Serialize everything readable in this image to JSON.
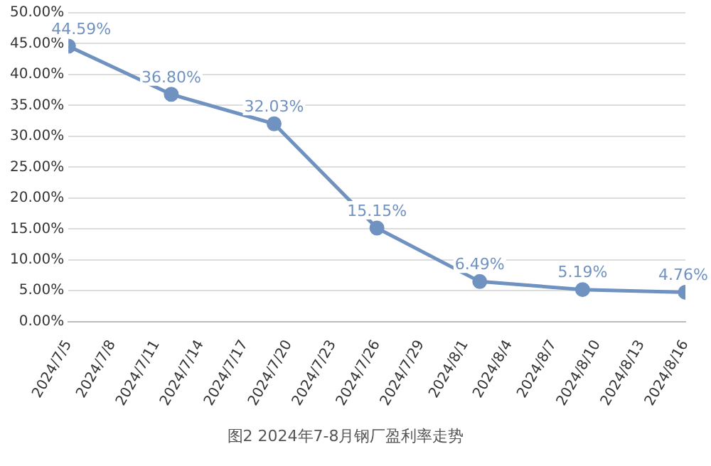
{
  "chart_data": {
    "type": "line",
    "title": "图2 2024年7-8月钢厂盈利率走势",
    "x": [
      "2024-07-05",
      "2024-07-12",
      "2024-07-19",
      "2024-07-26",
      "2024-08-02",
      "2024-08-09",
      "2024-08-16"
    ],
    "series": [
      {
        "color": "#7092c0",
        "values": [
          44.59,
          36.8,
          32.03,
          15.15,
          6.49,
          5.19,
          4.76
        ],
        "value_labels": [
          "44.59%",
          "36.80%",
          "32.03%",
          "15.15%",
          "6.49%",
          "5.19%",
          "4.76%"
        ]
      }
    ],
    "xlim": [
      "2024-07-05",
      "2024-08-16"
    ],
    "xticks": [
      {
        "value": "2024-07-05",
        "label": "2024/7/5"
      },
      {
        "value": "2024-07-08",
        "label": "2024/7/8"
      },
      {
        "value": "2024-07-11",
        "label": "2024/7/11"
      },
      {
        "value": "2024-07-14",
        "label": "2024/7/14"
      },
      {
        "value": "2024-07-17",
        "label": "2024/7/17"
      },
      {
        "value": "2024-07-20",
        "label": "2024/7/20"
      },
      {
        "value": "2024-07-23",
        "label": "2024/7/23"
      },
      {
        "value": "2024-07-26",
        "label": "2024/7/26"
      },
      {
        "value": "2024-07-29",
        "label": "2024/7/29"
      },
      {
        "value": "2024-08-01",
        "label": "2024/8/1"
      },
      {
        "value": "2024-08-04",
        "label": "2024/8/4"
      },
      {
        "value": "2024-08-07",
        "label": "2024/8/7"
      },
      {
        "value": "2024-08-10",
        "label": "2024/8/10"
      },
      {
        "value": "2024-08-13",
        "label": "2024/8/13"
      },
      {
        "value": "2024-08-16",
        "label": "2024/8/16"
      }
    ],
    "ylim": [
      0,
      50
    ],
    "yticks": [
      {
        "value": 0,
        "label": "0.00%"
      },
      {
        "value": 5,
        "label": "5.00%"
      },
      {
        "value": 10,
        "label": "10.00%"
      },
      {
        "value": 15,
        "label": "15.00%"
      },
      {
        "value": 20,
        "label": "20.00%"
      },
      {
        "value": 25,
        "label": "25.00%"
      },
      {
        "value": 30,
        "label": "30.00%"
      },
      {
        "value": 35,
        "label": "35.00%"
      },
      {
        "value": 40,
        "label": "40.00%"
      },
      {
        "value": 45,
        "label": "45.00%"
      },
      {
        "value": 50,
        "label": "50.00%"
      }
    ],
    "grid": "y",
    "legend": false,
    "marker": "circle",
    "line_style": "solid"
  }
}
